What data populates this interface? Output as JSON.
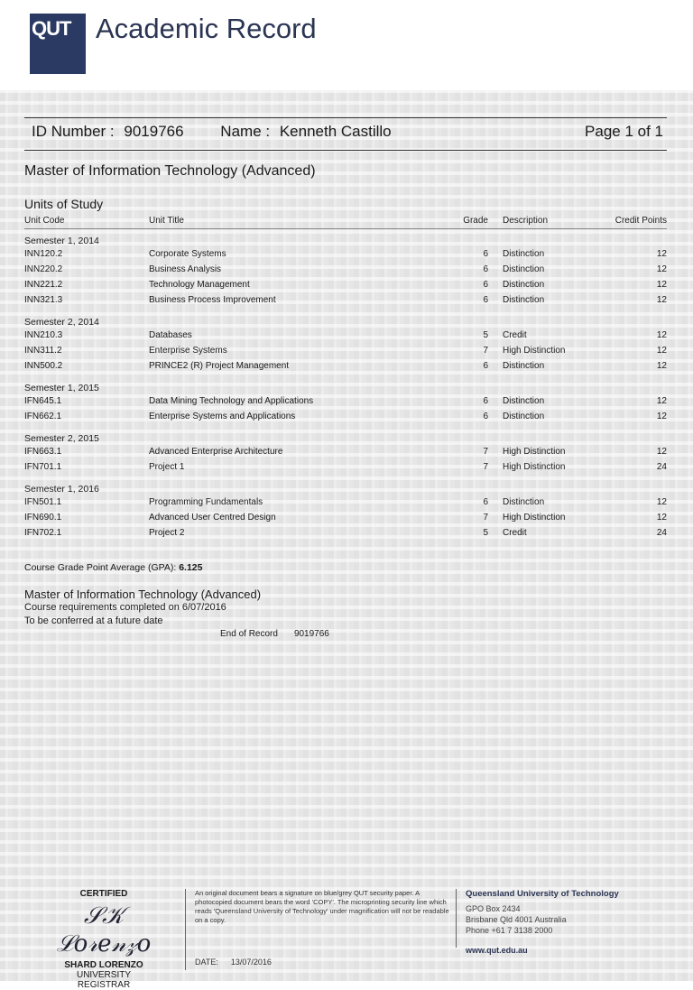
{
  "header": {
    "logo_text": "QUT",
    "title": "Academic Record"
  },
  "record": {
    "id_label": "ID Number :",
    "id": "9019766",
    "name_label": "Name :",
    "name": "Kenneth Castillo",
    "page": "Page 1 of 1"
  },
  "program": "Master of Information Technology (Advanced)",
  "units_heading": "Units of Study",
  "columns": {
    "code": "Unit Code",
    "title": "Unit Title",
    "grade": "Grade",
    "description": "Description",
    "credit": "Credit Points"
  },
  "semesters": [
    {
      "label": "Semester 1, 2014",
      "units": [
        {
          "code": "INN120.2",
          "title": "Corporate Systems",
          "grade": "6",
          "description": "Distinction",
          "credit": "12"
        },
        {
          "code": "INN220.2",
          "title": "Business Analysis",
          "grade": "6",
          "description": "Distinction",
          "credit": "12"
        },
        {
          "code": "INN221.2",
          "title": "Technology Management",
          "grade": "6",
          "description": "Distinction",
          "credit": "12"
        },
        {
          "code": "INN321.3",
          "title": "Business Process Improvement",
          "grade": "6",
          "description": "Distinction",
          "credit": "12"
        }
      ]
    },
    {
      "label": "Semester 2, 2014",
      "units": [
        {
          "code": "INN210.3",
          "title": "Databases",
          "grade": "5",
          "description": "Credit",
          "credit": "12"
        },
        {
          "code": "INN311.2",
          "title": "Enterprise Systems",
          "grade": "7",
          "description": "High Distinction",
          "credit": "12"
        },
        {
          "code": "INN500.2",
          "title": "PRINCE2 (R) Project Management",
          "grade": "6",
          "description": "Distinction",
          "credit": "12"
        }
      ]
    },
    {
      "label": "Semester 1, 2015",
      "units": [
        {
          "code": "IFN645.1",
          "title": "Data Mining Technology and Applications",
          "grade": "6",
          "description": "Distinction",
          "credit": "12"
        },
        {
          "code": "IFN662.1",
          "title": "Enterprise Systems and Applications",
          "grade": "6",
          "description": "Distinction",
          "credit": "12"
        }
      ]
    },
    {
      "label": "Semester 2, 2015",
      "units": [
        {
          "code": "IFN663.1",
          "title": "Advanced Enterprise Architecture",
          "grade": "7",
          "description": "High Distinction",
          "credit": "12"
        },
        {
          "code": "IFN701.1",
          "title": "Project 1",
          "grade": "7",
          "description": "High Distinction",
          "credit": "24"
        }
      ]
    },
    {
      "label": "Semester 1, 2016",
      "units": [
        {
          "code": "IFN501.1",
          "title": "Programming Fundamentals",
          "grade": "6",
          "description": "Distinction",
          "credit": "12"
        },
        {
          "code": "IFN690.1",
          "title": "Advanced User Centred Design",
          "grade": "7",
          "description": "High Distinction",
          "credit": "12"
        },
        {
          "code": "IFN702.1",
          "title": "Project 2",
          "grade": "5",
          "description": "Credit",
          "credit": "24"
        }
      ]
    }
  ],
  "gpa": {
    "label": "Course Grade Point Average (GPA):",
    "value": "6.125"
  },
  "award": {
    "title": "Master of Information Technology (Advanced)",
    "completed": "Course requirements completed on  6/07/2016",
    "conferred": "To be conferred at a future date"
  },
  "end": {
    "label": "End of Record",
    "id": "9019766"
  },
  "footer": {
    "certified": "CERTIFIED",
    "signature": "SK Lorenzo",
    "registrar_name": "SHARD LORENZO",
    "registrar_title": "UNIVERSITY REGISTRAR",
    "note": "An original document bears a signature on blue/grey QUT security paper. A photocopied document bears the word 'COPY'. The microprinting security line which reads 'Queensland University of Technology' under magnification will not be readable on a copy.",
    "date_label": "DATE:",
    "date": "13/07/2016",
    "university": "Queensland University of Technology",
    "address1": "GPO Box 2434",
    "address2": "Brisbane Qld 4001 Australia",
    "phone": "Phone +61 7 3138 2000",
    "website": "www.qut.edu.au"
  },
  "colors": {
    "brand": "#2b3a63",
    "title": "#2b3553"
  }
}
